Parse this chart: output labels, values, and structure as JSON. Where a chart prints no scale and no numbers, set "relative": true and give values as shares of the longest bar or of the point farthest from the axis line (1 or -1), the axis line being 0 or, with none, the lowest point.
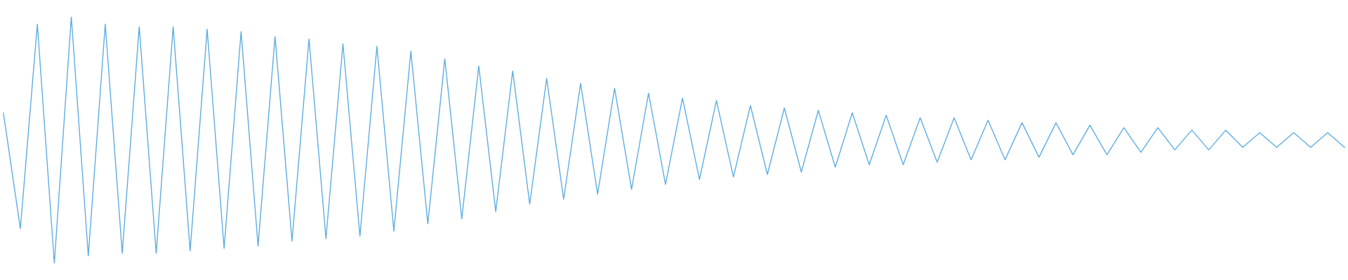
{
  "chart_data": {
    "type": "line",
    "relative": true,
    "marker": "none",
    "line_style": "solid",
    "grid": false,
    "legend": false,
    "categories": [
      null,
      null,
      null,
      null,
      null,
      null,
      null,
      null,
      null,
      null,
      null,
      null,
      null,
      null,
      null,
      null,
      null,
      null,
      null,
      null,
      null,
      null,
      null,
      null,
      null,
      null,
      null,
      null,
      null,
      null,
      null,
      null,
      null,
      null,
      null,
      null,
      null,
      null,
      null,
      null,
      null,
      null,
      null,
      null,
      null,
      null,
      null,
      null,
      null,
      null,
      null,
      null,
      null,
      null,
      null,
      null,
      null,
      null,
      null,
      null,
      null,
      null,
      null,
      null,
      null,
      null,
      null,
      null,
      null,
      null,
      null,
      null,
      null,
      null,
      null,
      null,
      null,
      null,
      null,
      null
    ],
    "series": [
      {
        "color": "#5dade2",
        "values": [
          0.61,
          0.14,
          0.97,
          0.0,
          1.0,
          0.03,
          0.97,
          0.04,
          0.96,
          0.04,
          0.96,
          0.05,
          0.95,
          0.06,
          0.94,
          0.07,
          0.92,
          0.09,
          0.91,
          0.1,
          0.89,
          0.11,
          0.88,
          0.13,
          0.86,
          0.16,
          0.83,
          0.18,
          0.8,
          0.21,
          0.78,
          0.24,
          0.75,
          0.26,
          0.73,
          0.28,
          0.71,
          0.3,
          0.69,
          0.32,
          0.67,
          0.34,
          0.66,
          0.35,
          0.64,
          0.36,
          0.63,
          0.37,
          0.62,
          0.39,
          0.61,
          0.4,
          0.6,
          0.4,
          0.59,
          0.41,
          0.59,
          0.42,
          0.58,
          0.42,
          0.57,
          0.43,
          0.57,
          0.44,
          0.56,
          0.44,
          0.55,
          0.45,
          0.55,
          0.46,
          0.54,
          0.46,
          0.54,
          0.47,
          0.53,
          0.47,
          0.53,
          0.47,
          0.53,
          0.47
        ]
      }
    ]
  }
}
